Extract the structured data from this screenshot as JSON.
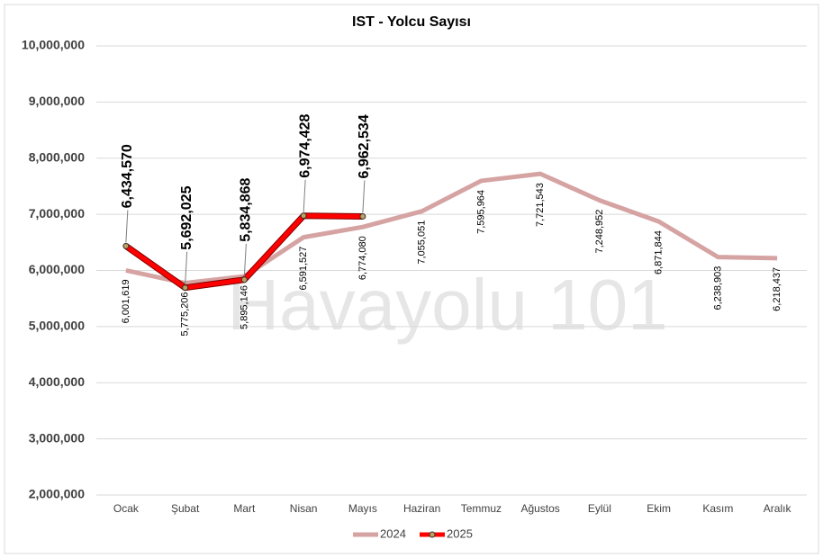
{
  "chart_data": {
    "type": "line",
    "title": "IST - Yolcu Sayısı",
    "watermark": "Havayolu 101",
    "categories": [
      "Ocak",
      "Şubat",
      "Mart",
      "Nisan",
      "Mayıs",
      "Haziran",
      "Temmuz",
      "Ağustos",
      "Eylül",
      "Ekim",
      "Kasım",
      "Aralık"
    ],
    "series": [
      {
        "name": "2024",
        "color": "#d6a3a3",
        "values": [
          6001619,
          5775206,
          5895146,
          6591527,
          6774080,
          7055051,
          7595964,
          7721543,
          7248952,
          6871844,
          6238903,
          6218437
        ],
        "value_labels": [
          "6,001,619",
          "5,775,206",
          "5,895,146",
          "6,591,527",
          "6,774,080",
          "7,055,051",
          "7,595,964",
          "7,721,543",
          "7,248,952",
          "6,871,844",
          "6,238,903",
          "6,218,437"
        ]
      },
      {
        "name": "2025",
        "color": "#ff0000",
        "values": [
          6434570,
          5692025,
          5834868,
          6974428,
          6962534,
          null,
          null,
          null,
          null,
          null,
          null,
          null
        ],
        "value_labels": [
          "6,434,570",
          "5,692,025",
          "5,834,868",
          "6,974,428",
          "6,962,534",
          null,
          null,
          null,
          null,
          null,
          null,
          null
        ]
      }
    ],
    "ylim": [
      2000000,
      10000000
    ],
    "yticks": [
      {
        "value": 2000000,
        "label": "2,000,000"
      },
      {
        "value": 3000000,
        "label": "3,000,000"
      },
      {
        "value": 4000000,
        "label": "4,000,000"
      },
      {
        "value": 5000000,
        "label": "5,000,000"
      },
      {
        "value": 6000000,
        "label": "6,000,000"
      },
      {
        "value": 7000000,
        "label": "7,000,000"
      },
      {
        "value": 8000000,
        "label": "8,000,000"
      },
      {
        "value": 9000000,
        "label": "9,000,000"
      },
      {
        "value": 10000000,
        "label": "10,000,000"
      }
    ],
    "grid": true,
    "legend": "bottom"
  }
}
